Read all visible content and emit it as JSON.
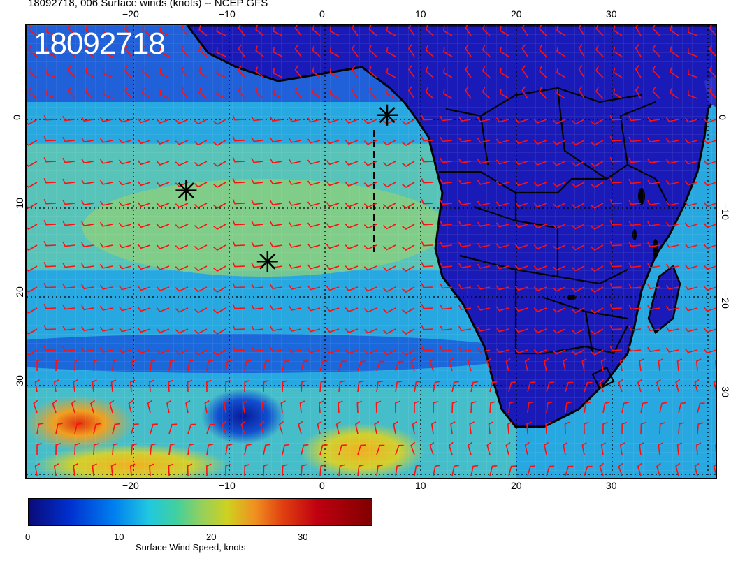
{
  "title": "18092718, 006 Surface winds (knots) -- NCEP GFS",
  "overlay_time": "18092718",
  "top_lon_ticks": [
    "−20",
    "−10",
    "0",
    "10",
    "20",
    "30"
  ],
  "bottom_lon_ticks": [
    "−20",
    "−10",
    "0",
    "10",
    "20",
    "30"
  ],
  "left_lat_ticks": [
    "0",
    "−10",
    "−20",
    "−30"
  ],
  "right_lat_ticks": [
    "0",
    "−10",
    "−20",
    "−30"
  ],
  "colorbar": {
    "label": "Surface Wind Speed, knots",
    "ticks": [
      "0",
      "10",
      "20",
      "30"
    ]
  },
  "colors": {
    "ocean_fast": "#7fd090",
    "ocean_mid": "#20a0e8",
    "land": "#1a1ab0",
    "barb": "#ff1010",
    "coast": "#000000"
  },
  "markers": [
    {
      "name": "storm-marker-1",
      "lon": -14.5,
      "lat": -8
    },
    {
      "name": "storm-marker-2",
      "lon": -6,
      "lat": -16
    },
    {
      "name": "storm-marker-3",
      "lon": 6.5,
      "lat": 0.5
    }
  ]
}
